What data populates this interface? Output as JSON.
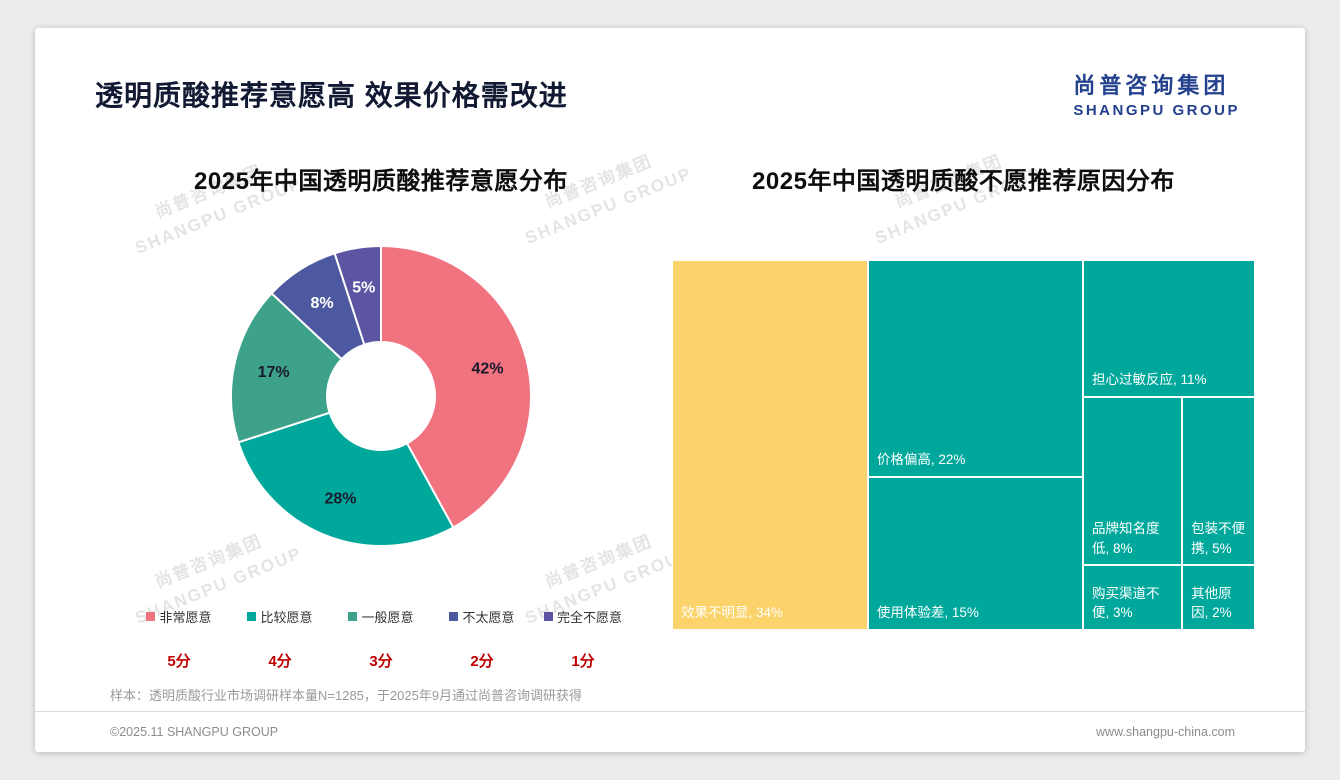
{
  "page": {
    "title": "透明质酸推荐意愿高 效果价格需改进",
    "logo": {
      "cn": "尚普咨询集团",
      "en": "SHANGPU GROUP"
    },
    "watermark": {
      "cn": "尚普咨询集团",
      "en": "SHANGPU GROUP"
    },
    "note": "样本：透明质酸行业市场调研样本量N=1285，于2025年9月通过尚普咨询调研获得",
    "footer_left": "©2025.11 SHANGPU GROUP",
    "footer_right": "www.shangpu-china.com"
  },
  "colors": {
    "card_background": "#ffffff",
    "page_background": "#ececec",
    "title_text": "#121a33",
    "logo_navy": "#24418e",
    "score_red": "#c00000",
    "treemap_teal": "#00a89c",
    "treemap_yellow": "#fcd36a"
  },
  "chart_data": [
    {
      "type": "pie",
      "title": "2025年中国透明质酸推荐意愿分布",
      "donut": true,
      "inner_radius_ratio": 0.36,
      "legend_position": "bottom",
      "series": [
        {
          "name": "非常愿意",
          "value": 42,
          "label": "42%",
          "color": "#f1737f",
          "label_color": "#1a1a2e",
          "score": "5分"
        },
        {
          "name": "比较愿意",
          "value": 28,
          "label": "28%",
          "color": "#00a89c",
          "label_color": "#1a1a2e",
          "score": "4分"
        },
        {
          "name": "一般愿意",
          "value": 17,
          "label": "17%",
          "color": "#3ea28b",
          "label_color": "#1a1a2e",
          "score": "3分"
        },
        {
          "name": "不太愿意",
          "value": 8,
          "label": "8%",
          "color": "#4c59a0",
          "label_color": "#ffffff",
          "score": "2分"
        },
        {
          "name": "完全不愿意",
          "value": 5,
          "label": "5%",
          "color": "#5d55a4",
          "label_color": "#ffffff",
          "score": "1分"
        }
      ]
    },
    {
      "type": "treemap",
      "title": "2025年中国透明质酸不愿推荐原因分布",
      "items": [
        {
          "name": "效果不明显",
          "value": 34,
          "label": "效果不明显, 34%",
          "color": "#fcd36a"
        },
        {
          "name": "价格偏高",
          "value": 22,
          "label": "价格偏高, 22%",
          "color": "#00a89c"
        },
        {
          "name": "使用体验差",
          "value": 15,
          "label": "使用体验差, 15%",
          "color": "#00a89c"
        },
        {
          "name": "担心过敏反应",
          "value": 11,
          "label": "担心过敏反应, 11%",
          "color": "#00a89c"
        },
        {
          "name": "品牌知名度低",
          "value": 8,
          "label": "品牌知名度低, 8%",
          "color": "#00a89c"
        },
        {
          "name": "包装不便携",
          "value": 5,
          "label": "包装不便携, 5%",
          "color": "#00a89c"
        },
        {
          "name": "购买渠道不便",
          "value": 3,
          "label": "购买渠道不便, 3%",
          "color": "#00a89c"
        },
        {
          "name": "其他原因",
          "value": 2,
          "label": "其他原因, 2%",
          "color": "#00a89c"
        }
      ]
    }
  ]
}
